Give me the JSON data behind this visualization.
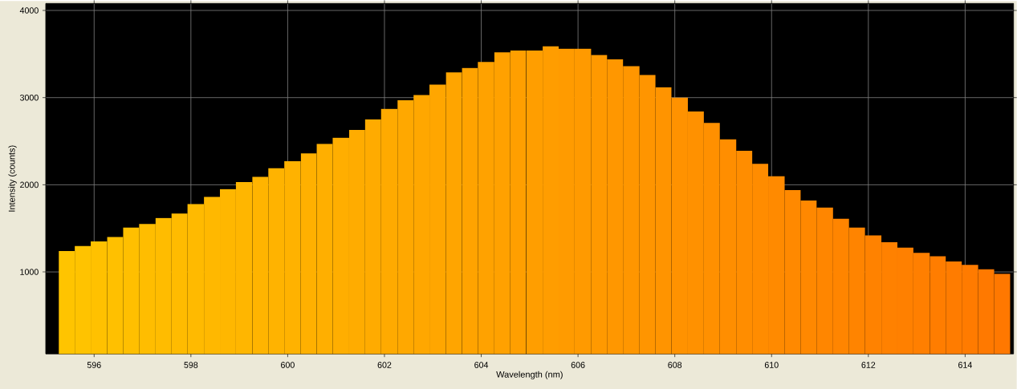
{
  "chart_data": {
    "type": "histogram",
    "xlabel": "Wavelength (nm)",
    "ylabel": "Intensity (counts)",
    "bins": [
      595.27,
      595.6,
      595.93,
      596.27,
      596.6,
      596.93,
      597.27,
      597.6,
      597.93,
      598.27,
      598.6,
      598.93,
      599.27,
      599.6,
      599.93,
      600.27,
      600.6,
      600.93,
      601.27,
      601.6,
      601.93,
      602.27,
      602.6,
      602.93,
      603.27,
      603.6,
      603.93,
      604.27,
      604.6,
      604.93,
      605.27,
      605.6,
      605.93,
      606.27,
      606.6,
      606.93,
      607.27,
      607.6,
      607.93,
      608.27,
      608.6,
      608.93,
      609.27,
      609.6,
      609.93,
      610.27,
      610.6,
      610.93,
      611.27,
      611.6,
      611.93,
      612.27,
      612.6,
      612.93,
      613.27,
      613.6,
      613.93,
      614.27,
      614.6,
      614.93
    ],
    "values": [
      1240,
      1300,
      1350,
      1400,
      1510,
      1550,
      1620,
      1670,
      1780,
      1860,
      1950,
      2030,
      2090,
      2190,
      2270,
      2360,
      2470,
      2540,
      2630,
      2750,
      2870,
      2970,
      3030,
      3150,
      3290,
      3340,
      3410,
      3520,
      3540,
      3540,
      3590,
      3560,
      3560,
      3490,
      3440,
      3360,
      3260,
      3120,
      3000,
      2840,
      2710,
      2520,
      2390,
      2240,
      2100,
      1940,
      1820,
      1740,
      1610,
      1510,
      1420,
      1340,
      1280,
      1220,
      1180,
      1120,
      1080,
      1030,
      980
    ],
    "colors": [
      "#ffc400",
      "#ffc300",
      "#ffc100",
      "#ffc000",
      "#ffbf00",
      "#ffbd00",
      "#ffbc00",
      "#ffbb00",
      "#ffba00",
      "#ffb800",
      "#ffb700",
      "#ffb600",
      "#ffb400",
      "#ffb300",
      "#ffb200",
      "#ffb000",
      "#ffaf00",
      "#ffae00",
      "#ffac00",
      "#ffab00",
      "#ffaa00",
      "#ffa800",
      "#ffa700",
      "#ffa600",
      "#ffa500",
      "#ffa300",
      "#ffa200",
      "#ffa100",
      "#ff9f00",
      "#ff9e00",
      "#ff9d00",
      "#ff9b00",
      "#ff9a00",
      "#ff9900",
      "#ff9700",
      "#ff9600",
      "#ff9500",
      "#ff9400",
      "#ff9200",
      "#ff9100",
      "#ff9000",
      "#ff8e00",
      "#ff8d00",
      "#ff8c00",
      "#ff8a00",
      "#ff8900",
      "#ff8800",
      "#ff8600",
      "#ff8500",
      "#ff8400",
      "#ff8200",
      "#ff8100",
      "#ff8000",
      "#ff7f00",
      "#ff7d00",
      "#ff7c00",
      "#ff7b00",
      "#ff7900",
      "#ff7800"
    ],
    "xlim": [
      595.0,
      615.0
    ],
    "ylim": [
      60,
      4080
    ],
    "xticks": [
      596,
      598,
      600,
      602,
      604,
      606,
      608,
      610,
      612,
      614
    ],
    "yticks": [
      1000,
      2000,
      3000,
      4000
    ],
    "grid": true
  }
}
